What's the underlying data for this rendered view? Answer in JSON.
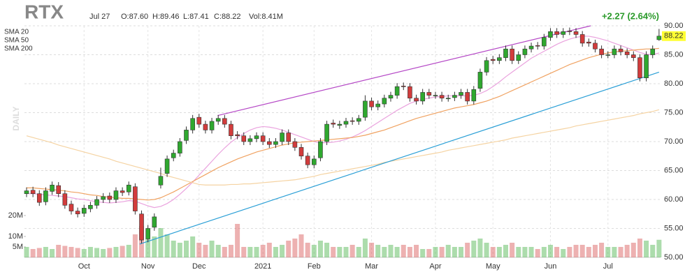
{
  "chart_data": {
    "type": "candlestick",
    "ticker": "RTX",
    "date": "Jul 27",
    "ohlc_labels": [
      "O:87.60",
      "H:89.46",
      "L:87.41",
      "C:88.22",
      "Vol:8.41M"
    ],
    "change": "+2.27 (2.64%)",
    "period": "DAILY",
    "categories": [
      null,
      null,
      null,
      null,
      null,
      null,
      null,
      null,
      null,
      "Oct",
      null,
      null,
      null,
      null,
      null,
      null,
      null,
      null,
      null,
      "Nov",
      null,
      null,
      null,
      null,
      null,
      null,
      null,
      "Dec",
      null,
      null,
      null,
      null,
      null,
      null,
      null,
      null,
      null,
      "2021",
      null,
      null,
      null,
      null,
      null,
      null,
      null,
      "Feb",
      null,
      null,
      null,
      null,
      null,
      null,
      null,
      null,
      "Mar",
      null,
      null,
      null,
      null,
      null,
      null,
      null,
      null,
      null,
      "Apr",
      null,
      null,
      null,
      null,
      null,
      null,
      null,
      null,
      "May",
      null,
      null,
      null,
      null,
      null,
      null,
      null,
      null,
      "Jun",
      null,
      null,
      null,
      null,
      null,
      null,
      null,
      null,
      "Jul",
      null,
      null,
      null,
      null,
      null,
      null,
      null,
      null
    ],
    "open": [
      61,
      61.6,
      61,
      59.6,
      61.4,
      62.4,
      61,
      59.2,
      58,
      57.6,
      58.4,
      59,
      60,
      60.6,
      60,
      61.5,
      61.3,
      62.2,
      57.5,
      53.2,
      55.2,
      62.5,
      64.5,
      67.2,
      68,
      70.2,
      72,
      74.2,
      73,
      72,
      73.5,
      74,
      73,
      71.2,
      71,
      70,
      70.5,
      71,
      70,
      69.5,
      70,
      71.5,
      70,
      69,
      67.5,
      66,
      67.2,
      70,
      73.2,
      72.8,
      73,
      73.6,
      73.5,
      74.2,
      77,
      76,
      76.5,
      77.5,
      78,
      79.6,
      79.5,
      77.5,
      77,
      78.5,
      78,
      78,
      77.5,
      77.6,
      78,
      78.5,
      77,
      79.2,
      82,
      84.2,
      84,
      84.5,
      86,
      84,
      85,
      86,
      86.6,
      86.5,
      88,
      89,
      88.5,
      89.1,
      89,
      88.5,
      87.2,
      87,
      86,
      85,
      85,
      86,
      85.5,
      85,
      84.5,
      81,
      85,
      87.6
    ],
    "high": [
      62.1,
      62.2,
      61.6,
      62.1,
      63.1,
      63,
      61.6,
      59.8,
      58.6,
      59.1,
      59.6,
      60.6,
      61.1,
      61.2,
      62.1,
      62.1,
      63.1,
      62.8,
      58.1,
      55.6,
      57.6,
      65.5,
      67.6,
      68.6,
      70.6,
      72.6,
      74.6,
      74.8,
      73.6,
      74.1,
      74.6,
      74.6,
      73.6,
      71.8,
      71.6,
      71.1,
      71.6,
      71.6,
      70.6,
      70.6,
      72.1,
      72.1,
      70.6,
      69.6,
      68.1,
      67.6,
      70.6,
      73.6,
      73.8,
      73.6,
      74.1,
      74.2,
      74.6,
      78,
      77.6,
      77.1,
      78.1,
      78.6,
      80.1,
      80.2,
      80.1,
      78.1,
      79.1,
      79.1,
      78.6,
      78.6,
      78.1,
      78.6,
      79.1,
      79.1,
      79.6,
      82.6,
      84.6,
      84.8,
      85.1,
      86.6,
      86.6,
      85.6,
      86.6,
      87.1,
      87.2,
      88.6,
      89.6,
      89.6,
      89.6,
      89.7,
      89.6,
      89.1,
      87.8,
      87.6,
      86.6,
      85.6,
      86.6,
      86.6,
      86.1,
      85.6,
      85.1,
      85.6,
      86.6,
      89.46
    ],
    "low": [
      60.4,
      60.4,
      58.9,
      59,
      60.8,
      60.4,
      58.4,
      57.4,
      56.9,
      57,
      57.8,
      58.4,
      59.4,
      59.4,
      59.4,
      60.6,
      60.7,
      57.4,
      52.4,
      52.6,
      54.6,
      61.9,
      63.9,
      66.6,
      67.4,
      69.6,
      71.4,
      72.4,
      71.4,
      71.4,
      72.9,
      72.4,
      70.4,
      70.4,
      69.4,
      69.4,
      69.9,
      69.4,
      68.9,
      68.9,
      69.4,
      69.4,
      68.4,
      66.9,
      65.4,
      65.4,
      66.6,
      69.4,
      72.4,
      72.2,
      72.4,
      72.9,
      72.9,
      73.6,
      75.4,
      75.4,
      75.9,
      76.9,
      77.4,
      78.9,
      76.9,
      76.4,
      76.4,
      77.4,
      77.4,
      76.9,
      76.9,
      77,
      77.4,
      76.4,
      76.4,
      78.6,
      81.4,
      83.4,
      83.4,
      83.9,
      83.4,
      83.4,
      84.4,
      85.4,
      85.9,
      85.9,
      87.4,
      87.9,
      87.9,
      88.4,
      87.9,
      86.4,
      86.4,
      85.4,
      84.4,
      84.4,
      84.4,
      84.9,
      84.4,
      83.9,
      80.4,
      80.4,
      84.4,
      87.41
    ],
    "close": [
      61.5,
      61,
      59.5,
      61.5,
      62.5,
      61,
      59,
      58,
      57.5,
      58.5,
      59,
      60,
      60.5,
      60,
      61.5,
      61.2,
      62.5,
      58,
      53,
      55,
      57,
      64,
      67,
      68,
      70,
      72,
      74,
      73,
      72,
      73.5,
      74,
      73,
      71,
      71,
      70,
      70.5,
      71,
      70,
      69.5,
      70,
      71.5,
      70,
      69,
      67.5,
      66,
      67,
      70,
      73,
      73,
      73,
      73.5,
      73.5,
      74,
      77,
      76,
      76.5,
      77.5,
      78,
      79.5,
      79.5,
      77.5,
      77,
      78.5,
      78,
      78,
      77.5,
      77.5,
      78,
      78.5,
      77,
      79,
      82,
      84,
      84,
      84.5,
      86,
      84,
      85,
      86,
      86.5,
      86.5,
      88,
      89,
      88.5,
      89,
      89,
      88.5,
      87,
      87,
      86,
      85,
      85,
      86,
      85.5,
      85,
      84.5,
      81,
      85,
      86,
      88.22
    ],
    "volume": [
      5,
      4,
      4.5,
      5,
      4,
      6,
      5.5,
      5,
      4.5,
      4,
      5,
      4.5,
      4,
      4.5,
      5,
      5.5,
      6,
      11,
      15,
      9,
      10,
      14,
      11,
      8,
      7,
      8,
      10,
      7,
      6,
      8,
      6,
      5,
      6,
      16,
      5,
      5,
      5,
      6,
      7,
      5,
      6,
      8,
      9,
      11,
      7,
      6,
      8,
      7,
      5,
      5,
      5,
      6,
      5,
      9,
      7,
      6,
      5,
      6,
      5,
      6,
      5,
      6,
      4,
      4,
      5,
      5,
      6,
      5,
      5,
      7,
      8,
      9,
      7,
      5,
      5,
      6,
      7,
      5,
      5,
      5,
      4,
      5,
      6,
      5,
      4,
      5,
      6,
      6,
      5,
      6,
      7,
      5,
      5,
      5,
      6,
      7,
      9,
      8,
      6,
      8.41
    ],
    "up_color": "#2fa82f",
    "down_color": "#d23c3c",
    "series": [
      {
        "name": "SMA 20",
        "color": "#eaa2de",
        "values": [
          61,
          61,
          60.9,
          60.8,
          60.7,
          60.6,
          60.5,
          60.3,
          60.1,
          60,
          59.8,
          59.6,
          59.5,
          59.4,
          59.5,
          59.6,
          59.8,
          59.7,
          59.3,
          58.9,
          58.6,
          58.8,
          59.3,
          60,
          60.9,
          61.9,
          63,
          64.2,
          65.4,
          66.6,
          67.8,
          68.9,
          69.9,
          70.7,
          71.4,
          72,
          72.4,
          72.6,
          72.5,
          72.3,
          72,
          71.6,
          71.2,
          70.8,
          70.4,
          70,
          69.8,
          69.8,
          69.9,
          70.1,
          70.4,
          70.8,
          71.3,
          71.9,
          72.6,
          73.3,
          74,
          74.7,
          75.4,
          76,
          76.6,
          77,
          77.3,
          77.5,
          77.7,
          77.8,
          77.9,
          77.9,
          77.9,
          77.9,
          78,
          78.3,
          78.8,
          79.5,
          80.3,
          81.2,
          82,
          82.8,
          83.6,
          84.4,
          85,
          85.6,
          86.2,
          86.8,
          87.3,
          87.7,
          88,
          88.2,
          88.2,
          88,
          87.7,
          87.4,
          87,
          86.6,
          86.2,
          85.8,
          85.4,
          85.1,
          85,
          85.3
        ]
      },
      {
        "name": "SMA 50",
        "color": "#f0a261",
        "values": [
          62,
          62,
          61.9,
          61.8,
          61.7,
          61.6,
          61.5,
          61.3,
          61.2,
          61,
          60.8,
          60.7,
          60.5,
          60.4,
          60.3,
          60.2,
          60.2,
          60.1,
          60,
          59.9,
          60,
          60.3,
          60.8,
          61.3,
          61.9,
          62.5,
          63.1,
          63.7,
          64.3,
          64.9,
          65.5,
          66,
          66.5,
          67,
          67.4,
          67.8,
          68.2,
          68.5,
          68.8,
          69.1,
          69.4,
          69.6,
          69.8,
          69.9,
          70,
          70.1,
          70.2,
          70.3,
          70.4,
          70.5,
          70.6,
          70.7,
          70.9,
          71.1,
          71.4,
          71.7,
          72,
          72.4,
          72.8,
          73.2,
          73.6,
          74,
          74.3,
          74.6,
          74.9,
          75.2,
          75.5,
          75.8,
          76,
          76.2,
          76.4,
          76.7,
          77,
          77.4,
          77.8,
          78.3,
          78.8,
          79.3,
          79.8,
          80.3,
          80.8,
          81.3,
          81.8,
          82.3,
          82.8,
          83.3,
          83.7,
          84.1,
          84.5,
          84.8,
          85.1,
          85.3,
          85.5,
          85.6,
          85.7,
          85.8,
          85.9,
          86,
          86,
          86.1
        ]
      },
      {
        "name": "SMA 200",
        "color": "#f5d3a2",
        "values": [
          71,
          70.7,
          70.4,
          70.1,
          69.8,
          69.4,
          69.1,
          68.8,
          68.5,
          68.2,
          67.9,
          67.6,
          67.3,
          67,
          66.6,
          66.3,
          66,
          65.7,
          65.4,
          65.1,
          64.8,
          64.5,
          64.1,
          63.8,
          63.5,
          63.2,
          62.9,
          62.6,
          62.5,
          62.5,
          62.5,
          62.5,
          62.6,
          62.6,
          62.7,
          62.7,
          62.8,
          62.9,
          63,
          63.1,
          63.2,
          63.3,
          63.4,
          63.6,
          63.8,
          64,
          64.3,
          64.5,
          64.7,
          64.9,
          65.1,
          65.3,
          65.5,
          65.7,
          65.9,
          66.1,
          66.4,
          66.6,
          66.8,
          67,
          67.2,
          67.4,
          67.6,
          67.8,
          68,
          68.2,
          68.5,
          68.7,
          68.9,
          69.1,
          69.3,
          69.5,
          69.7,
          69.9,
          70.1,
          70.3,
          70.6,
          70.8,
          71,
          71.2,
          71.4,
          71.6,
          71.8,
          72,
          72.2,
          72.4,
          72.7,
          72.9,
          73.1,
          73.3,
          73.5,
          73.7,
          73.9,
          74.1,
          74.3,
          74.5,
          74.8,
          75,
          75.2,
          75.5
        ]
      }
    ],
    "trendlines": [
      {
        "color": "#b548c6",
        "x": [
          29.9,
          88.3
        ],
        "values": [
          74.5,
          90
        ]
      },
      {
        "color": "#2a9fd6",
        "x": [
          17.7,
          99
        ],
        "values": [
          52.3,
          82
        ]
      }
    ],
    "ylim": [
      50,
      90
    ],
    "yticks": [
      {
        "value": 90,
        "label": "90.00"
      },
      {
        "value": 85,
        "label": "85.00"
      },
      {
        "value": 80,
        "label": "80.00"
      },
      {
        "value": 75,
        "label": "75.00"
      },
      {
        "value": 70,
        "label": "70.00"
      },
      {
        "value": 65,
        "label": "65.00"
      },
      {
        "value": 60,
        "label": "60.00"
      },
      {
        "value": 55,
        "label": "55.00"
      },
      {
        "value": 50,
        "label": "50.00"
      }
    ],
    "vlim": [
      0,
      20
    ],
    "vticks": [
      {
        "value": 20,
        "label": "20M"
      },
      {
        "value": 10,
        "label": "10M"
      },
      {
        "value": 5,
        "label": "5M"
      }
    ],
    "grid": true
  }
}
